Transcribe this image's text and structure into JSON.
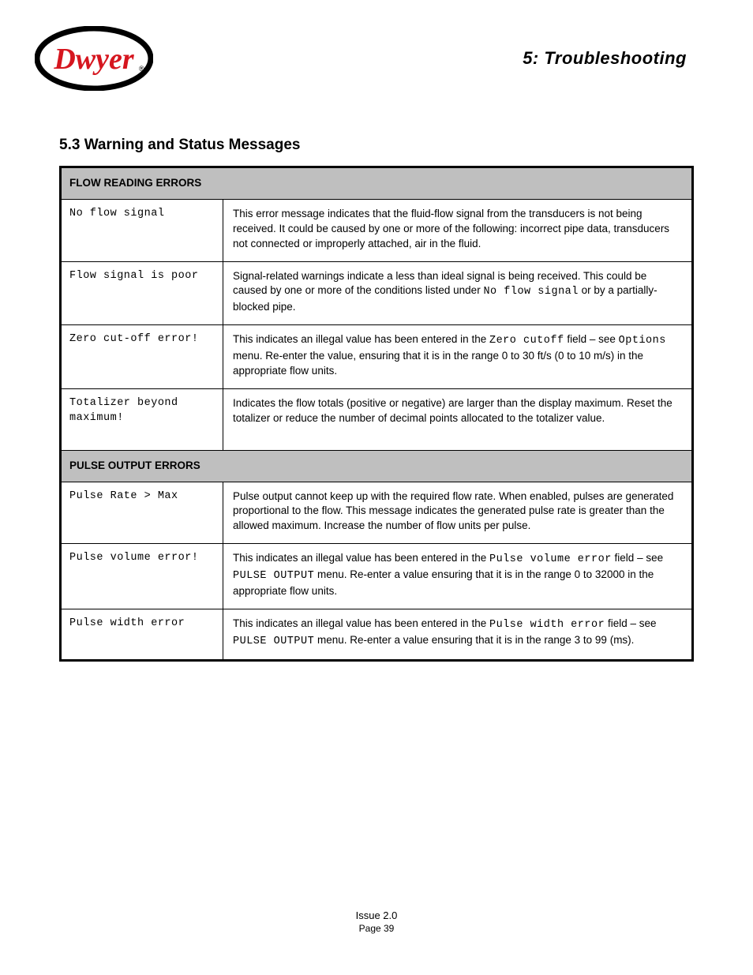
{
  "header": {
    "logo_text": "Dwyer",
    "logo_reg": "®",
    "title": "5:  Troubleshooting"
  },
  "subtitle": "5.3 Warning and Status Messages",
  "sections": [
    {
      "name": "FLOW READING ERRORS",
      "rows": [
        {
          "left": "No flow signal",
          "right_html": "This error message indicates that the fluid-flow signal from the transducers is not being received. It could be caused by one or more of the following: incorrect pipe data, transducers not connected or improperly attached, air in the fluid."
        },
        {
          "left": "Flow signal is poor",
          "right_html": "Signal-related warnings indicate a less than ideal signal is being received. This could be caused by one or more of the conditions listed under <span class=\"mono\">No flow signal</span> or by a partially-blocked pipe."
        },
        {
          "left": "Zero cut-off error!",
          "right_html": "This indicates an illegal value has been entered in the <span class=\"mono\">Zero cutoff</span> field – see <span class=\"mono\">Options</span> menu. Re-enter the value, ensuring that it is in the range 0 to 30 ft/s (0 to 10 m/s) in the appropriate flow units."
        },
        {
          "left": "Totalizer beyond maximum!",
          "right_html": "Indicates the flow totals (positive or negative) are larger than the display maximum. Reset the totalizer or reduce the number of decimal points allocated to the totalizer value."
        }
      ]
    },
    {
      "name": "PULSE OUTPUT ERRORS",
      "rows": [
        {
          "left": "Pulse Rate > Max",
          "right_html": "Pulse output cannot keep up with the required flow rate. When enabled, pulses are generated proportional to the flow. This message indicates the generated pulse rate is greater than the allowed maximum. Increase the number of flow units per pulse."
        },
        {
          "left": "Pulse volume error!",
          "right_html": "This indicates an illegal value has been entered in the <span class=\"mono\">Pulse volume error</span> field – see <span class=\"mono\">PULSE OUTPUT</span> menu. Re-enter a value ensuring that it is in the range 0 to 32000 in the appropriate flow units."
        },
        {
          "left": "Pulse width error",
          "right_html": "This indicates an illegal value has been entered in the <span class=\"mono\">Pulse width error</span> field – see <span class=\"mono\">PULSE OUTPUT</span> menu. Re-enter a value ensuring that it is in the range 3 to 99 (ms)."
        }
      ]
    }
  ],
  "footer": {
    "line1": "Issue  2.0",
    "line2": "Page 39"
  },
  "colors": {
    "section_bg": "#bfbfbf",
    "border": "#000000",
    "logo_red": "#d6161f",
    "logo_black": "#000000",
    "page_bg": "#ffffff"
  }
}
